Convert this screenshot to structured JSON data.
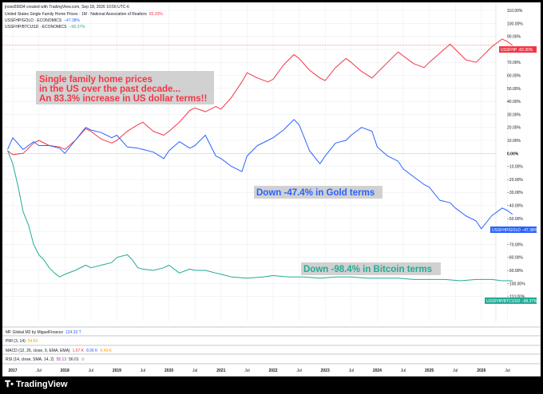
{
  "header": {
    "credit": "jnoss55834 created with TradingView.com, Sep 18, 2026 10:56 UTC-6",
    "legend": [
      {
        "name": "United States Single Family Home Prices · 1M · National Association of Realtors",
        "value": "83.30%",
        "color": "#f23645"
      },
      {
        "name": "USSFHP/GOLD · ECONOMICS",
        "value": "−47.38%",
        "color": "#2962ff"
      },
      {
        "name": "USSFHP/BTCUSD · ECONOMICS",
        "value": "−98.37%",
        "color": "#22ab94"
      }
    ]
  },
  "annotations": {
    "home_line1": "Single family home prices",
    "home_line2": "in the US over the past decade...",
    "home_line3": "An 83.3% increase in US dollar terms!!",
    "gold": "Down -47.4% in Gold terms",
    "btc": "Down -98.4% in Bitcoin terms"
  },
  "badges": {
    "ussfhp": "USSFHP ·83.30%",
    "gold": "USSFHP/GOLD −47.38%",
    "btc": "USSFHP/BTCUSD −98.37%"
  },
  "indicators": [
    {
      "label": "MF Global M2 by MiguelFinance",
      "value": "124.32 T",
      "value_color": "#2962ff"
    },
    {
      "label": "PMI (3, 14)",
      "value": "54.60",
      "value_color": "#ff9800"
    },
    {
      "label": "MACD (12, 26, close, 9, EMA, EMA)",
      "values": [
        "1.67 K",
        "8.06 K",
        "6.49 K"
      ],
      "value_colors": [
        "#f23645",
        "#2962ff",
        "#ff9800"
      ]
    },
    {
      "label": "RSI (14, close, SMA, 14, 2)",
      "values": [
        "55.13",
        "56.01"
      ],
      "value_colors": [
        "#9c27b0",
        "#131722"
      ],
      "suffix": "∅"
    }
  ],
  "footer": {
    "logo": "TradingView"
  },
  "colors": {
    "home": "#f23645",
    "gold": "#2962ff",
    "btc": "#22ab94",
    "grid": "#eceef2"
  },
  "chart_data": {
    "type": "line",
    "x_ticks": [
      "2017",
      "Jul",
      "2018",
      "Jul",
      "2019",
      "Jul",
      "2020",
      "Jul",
      "2021",
      "Jul",
      "2022",
      "Jul",
      "2023",
      "Jul",
      "2024",
      "Jul",
      "2025",
      "Jul",
      "2026",
      "Jul"
    ],
    "y_ticks": [
      "110.00%",
      "100.00%",
      "90.00%",
      "80.00%",
      "70.00%",
      "60.00%",
      "50.00%",
      "40.00%",
      "30.00%",
      "20.00%",
      "10.00%",
      "0.00%",
      "−10.00%",
      "−20.00%",
      "−30.00%",
      "−40.00%",
      "−50.00%",
      "−60.00%",
      "−70.00%",
      "−80.00%",
      "−90.00%",
      "−100.00%",
      "−110.00%"
    ],
    "ylim": [
      -110,
      110
    ],
    "series": [
      {
        "name": "USSFHP",
        "color": "#f23645",
        "x": [
          2016.9,
          2017.0,
          2017.2,
          2017.4,
          2017.5,
          2017.7,
          2017.9,
          2018.0,
          2018.2,
          2018.4,
          2018.5,
          2018.7,
          2018.9,
          2019.0,
          2019.2,
          2019.4,
          2019.5,
          2019.7,
          2019.9,
          2020.0,
          2020.2,
          2020.4,
          2020.5,
          2020.7,
          2020.9,
          2021.0,
          2021.2,
          2021.4,
          2021.5,
          2021.7,
          2021.9,
          2022.0,
          2022.2,
          2022.4,
          2022.5,
          2022.7,
          2022.9,
          2023.0,
          2023.2,
          2023.4,
          2023.5,
          2023.7,
          2023.9,
          2024.0,
          2024.2,
          2024.4,
          2024.5,
          2024.7,
          2024.9,
          2025.0,
          2025.2,
          2025.4,
          2025.5,
          2025.7,
          2025.9,
          2026.0,
          2026.2,
          2026.4,
          2026.5,
          2026.6
        ],
        "y": [
          2,
          -1,
          0,
          8,
          10,
          6,
          5,
          3,
          10,
          19,
          17,
          11,
          8,
          10,
          17,
          22,
          24,
          17,
          14,
          17,
          24,
          33,
          35,
          32,
          36,
          34,
          43,
          55,
          62,
          58,
          55,
          57,
          68,
          76,
          73,
          64,
          58,
          56,
          66,
          73,
          70,
          63,
          58,
          62,
          70,
          78,
          75,
          69,
          66,
          70,
          77,
          84,
          80,
          72,
          70,
          74,
          82,
          88,
          86,
          83
        ]
      },
      {
        "name": "USSFHP/GOLD",
        "color": "#2962ff",
        "x": [
          2016.9,
          2017.0,
          2017.2,
          2017.4,
          2017.5,
          2017.7,
          2017.9,
          2018.0,
          2018.2,
          2018.4,
          2018.5,
          2018.7,
          2018.9,
          2019.0,
          2019.2,
          2019.4,
          2019.5,
          2019.7,
          2019.9,
          2020.0,
          2020.2,
          2020.4,
          2020.5,
          2020.7,
          2020.9,
          2021.0,
          2021.2,
          2021.4,
          2021.5,
          2021.7,
          2021.9,
          2022.0,
          2022.2,
          2022.4,
          2022.5,
          2022.7,
          2022.9,
          2023.0,
          2023.2,
          2023.4,
          2023.5,
          2023.7,
          2023.9,
          2024.0,
          2024.2,
          2024.4,
          2024.5,
          2024.7,
          2024.9,
          2025.0,
          2025.2,
          2025.4,
          2025.5,
          2025.7,
          2025.9,
          2026.0,
          2026.2,
          2026.4,
          2026.5,
          2026.6
        ],
        "y": [
          3,
          12,
          3,
          9,
          6,
          6,
          4,
          0,
          10,
          20,
          18,
          16,
          12,
          14,
          5,
          4,
          3,
          1,
          -4,
          2,
          9,
          4,
          6,
          14,
          -2,
          -4,
          -10,
          -14,
          -2,
          6,
          10,
          12,
          18,
          26,
          22,
          2,
          -8,
          -2,
          8,
          10,
          14,
          20,
          17,
          5,
          -2,
          -6,
          -12,
          -18,
          -24,
          -26,
          -36,
          -38,
          -42,
          -48,
          -52,
          -58,
          -48,
          -42,
          -44,
          -47
        ]
      },
      {
        "name": "USSFHP/BTCUSD",
        "color": "#22ab94",
        "x": [
          2016.9,
          2017.0,
          2017.1,
          2017.2,
          2017.3,
          2017.4,
          2017.5,
          2017.6,
          2017.7,
          2017.8,
          2017.9,
          2018.0,
          2018.2,
          2018.4,
          2018.5,
          2018.7,
          2018.9,
          2019.0,
          2019.2,
          2019.3,
          2019.4,
          2019.5,
          2019.7,
          2019.9,
          2020.0,
          2020.2,
          2020.4,
          2020.5,
          2020.7,
          2020.9,
          2021.0,
          2021.2,
          2021.5,
          2021.8,
          2022.0,
          2022.3,
          2022.6,
          2022.9,
          2023.2,
          2023.5,
          2023.8,
          2024.1,
          2024.4,
          2024.7,
          2025.0,
          2025.3,
          2025.6,
          2025.9,
          2026.2,
          2026.4,
          2026.6
        ],
        "y": [
          2,
          -8,
          -25,
          -45,
          -55,
          -70,
          -78,
          -82,
          -88,
          -92,
          -95,
          -93,
          -90,
          -86,
          -88,
          -86,
          -84,
          -80,
          -78,
          -82,
          -88,
          -89,
          -90,
          -88,
          -86,
          -92,
          -89,
          -90,
          -90,
          -92,
          -93,
          -95,
          -96,
          -95,
          -94,
          -95,
          -95,
          -96,
          -95,
          -95,
          -96,
          -96,
          -96,
          -97,
          -97,
          -97,
          -98,
          -97,
          -97,
          -98,
          -98
        ]
      }
    ]
  }
}
